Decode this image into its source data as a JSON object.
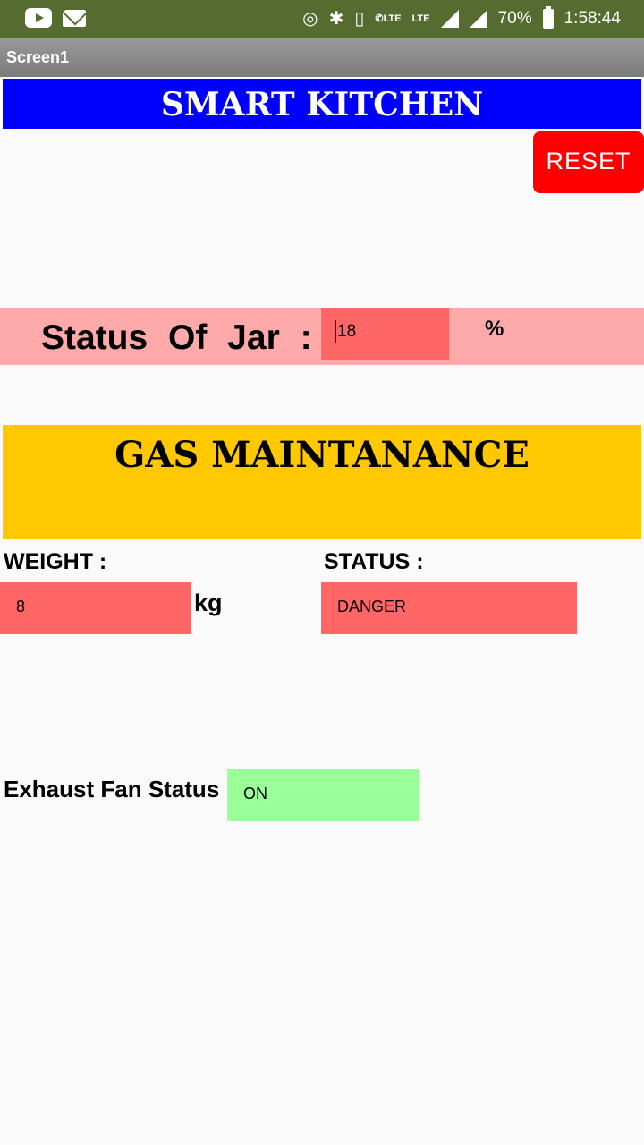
{
  "status_bar": {
    "battery": "70%",
    "time": "1:58:44",
    "lte1": "LTE",
    "lte2": "LTE",
    "icons": [
      "youtube-icon",
      "mail-icon",
      "hotspot-icon",
      "bluetooth-icon",
      "vibrate-icon",
      "volte-icon",
      "lte-icon",
      "signal-icon",
      "signal-icon",
      "battery-icon"
    ]
  },
  "screen": {
    "title": "Screen1"
  },
  "header": {
    "title": "SMART KITCHEN",
    "color": "#0000ff"
  },
  "reset": {
    "label": "RESET",
    "color": "#ff0000"
  },
  "jar": {
    "label": "Status  Of   Jar :",
    "value": "18",
    "unit": "%",
    "row_color": "#ffaaaa",
    "input_color": "#ff6666"
  },
  "gas": {
    "title": "GAS MAINTANANCE",
    "color": "#ffc800"
  },
  "weight": {
    "label": "WEIGHT :",
    "value": "8",
    "unit": "kg"
  },
  "status": {
    "label": "STATUS :",
    "value": "DANGER"
  },
  "fan": {
    "label": "Exhaust Fan Status",
    "value": "ON",
    "color": "#99ff99"
  }
}
